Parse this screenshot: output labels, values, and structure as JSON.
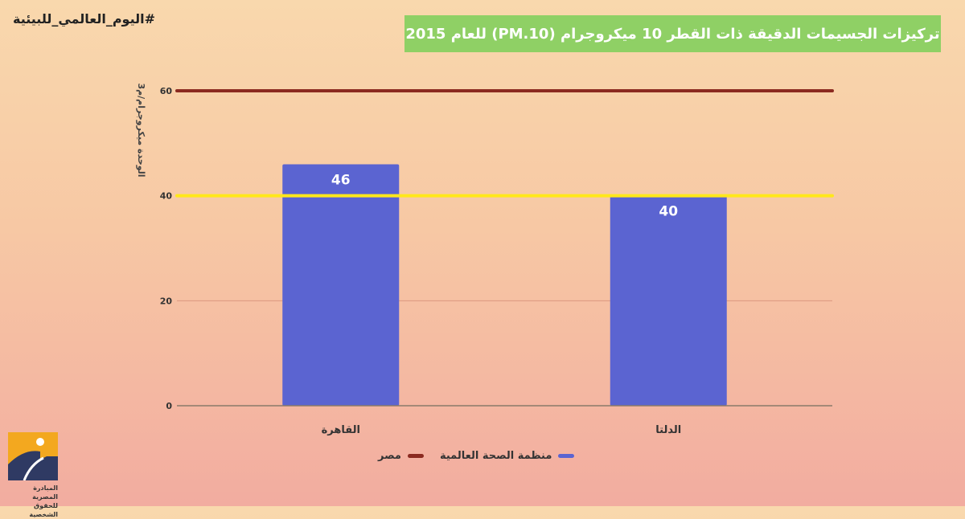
{
  "hashtag": "#اليوم_العالمي_للبيئية",
  "title": "تركيزات الجسيمات الدقيقة  ذات القطر 10 ميكروجرام (PM.10) للعام 2015",
  "logo": {
    "text_line1": "المبادرة  المصرية",
    "text_line2": "للحقوق الشخصية"
  },
  "colors": {
    "bar": "#5b64d1",
    "egypt_line": "#8b2a20",
    "who_line": "#ffe81a",
    "title_bg": "#8fd065"
  },
  "chart_data": {
    "type": "bar",
    "categories": [
      "القاهرة",
      "الدلتا"
    ],
    "series": [
      {
        "values": [
          46,
          40
        ]
      }
    ],
    "reference_lines": [
      {
        "name": "مصر",
        "value": 60,
        "color": "#8b2a20"
      },
      {
        "name": "منظمة الصحة العالمية",
        "value": 40,
        "color": "#ffe81a"
      }
    ],
    "data_labels": [
      "46",
      "40"
    ],
    "ylabel": "الوحدة ميكروجرام/م3",
    "yticks": [
      0,
      20,
      40,
      60
    ],
    "ylim": [
      0,
      60
    ],
    "grid": true,
    "legend": {
      "position": "bottom",
      "entries": [
        {
          "label": "منظمة الصحة العالمية",
          "color": "#5b64d1"
        },
        {
          "label": "مصر",
          "color": "#8b2a20"
        }
      ]
    }
  }
}
